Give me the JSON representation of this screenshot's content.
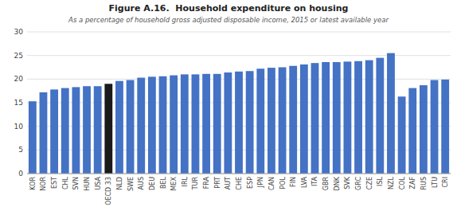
{
  "chart_data": {
    "type": "bar",
    "title": "Figure A.16.  Household expenditure on housing",
    "subtitle": "As a percentage of household gross adjusted disposable income, 2015 or latest available year",
    "categories": [
      "KOR",
      "NOR",
      "EST",
      "CHL",
      "SVN",
      "HUN",
      "USA",
      "OECD 33",
      "NLD",
      "SWE",
      "AUS",
      "DEU",
      "BEL",
      "MEX",
      "IRL",
      "TUR",
      "FRA",
      "PRT",
      "AUT",
      "CHE",
      "ESP",
      "JPN",
      "CAN",
      "POL",
      "FIN",
      "LVA",
      "ITA",
      "GBR",
      "DNK",
      "SVK",
      "GRC",
      "CZE",
      "ISL",
      "NZL",
      "COL",
      "ZAF",
      "RUS",
      "LTU",
      "CRI"
    ],
    "values": [
      15.3,
      17.2,
      17.8,
      18.1,
      18.3,
      18.5,
      18.5,
      19.0,
      19.6,
      19.8,
      20.3,
      20.5,
      20.6,
      20.8,
      21.0,
      21.0,
      21.1,
      21.1,
      21.4,
      21.6,
      21.7,
      22.2,
      22.4,
      22.5,
      22.8,
      23.1,
      23.4,
      23.6,
      23.6,
      23.7,
      23.8,
      24.0,
      24.5,
      25.5,
      16.3,
      18.1,
      18.7,
      19.8,
      19.9
    ],
    "colors": [
      "#4472C4",
      "#4472C4",
      "#4472C4",
      "#4472C4",
      "#4472C4",
      "#4472C4",
      "#4472C4",
      "#1a1a1a",
      "#4472C4",
      "#4472C4",
      "#4472C4",
      "#4472C4",
      "#4472C4",
      "#4472C4",
      "#4472C4",
      "#4472C4",
      "#4472C4",
      "#4472C4",
      "#4472C4",
      "#4472C4",
      "#4472C4",
      "#4472C4",
      "#4472C4",
      "#4472C4",
      "#4472C4",
      "#4472C4",
      "#4472C4",
      "#4472C4",
      "#4472C4",
      "#4472C4",
      "#4472C4",
      "#4472C4",
      "#4472C4",
      "#4472C4",
      "#4472C4",
      "#4472C4",
      "#4472C4",
      "#4472C4",
      "#4472C4"
    ],
    "ylim": [
      0,
      30
    ],
    "yticks": [
      0,
      5,
      10,
      15,
      20,
      25,
      30
    ],
    "grid": true
  }
}
